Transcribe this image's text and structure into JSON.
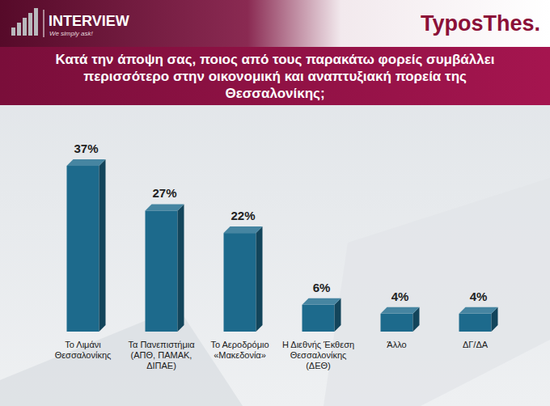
{
  "header": {
    "left_logo": "INTERVIEW",
    "left_tagline": "We simply ask!",
    "right_logo": "TyposThes."
  },
  "chart_data": {
    "type": "bar",
    "title": "Κατά την άποψη σας, ποιος από τους παρακάτω φορείς συμβάλλει περισσότερο στην οικονομική και αναπτυξιακή πορεία της Θεσσαλονίκης;",
    "categories": [
      "Το Λιμάνι Θεσσαλονίκης",
      "Τα Πανεπιστήμια (ΑΠΘ, ΠΑΜΑΚ, ΔΙΠΑΕ)",
      "Το Αεροδρόμιο «Μακεδονία»",
      "Η Διεθνής Έκθεση Θεσσαλονίκης (ΔΕΘ)",
      "Άλλο",
      "ΔΓ/ΔΑ"
    ],
    "values": [
      37,
      27,
      22,
      6,
      4,
      4
    ],
    "value_labels": [
      "37%",
      "27%",
      "22%",
      "6%",
      "4%",
      "4%"
    ],
    "color": "#1d6a8c",
    "ylim": [
      0,
      40
    ],
    "data_labels": true,
    "tick_labels": "x"
  }
}
